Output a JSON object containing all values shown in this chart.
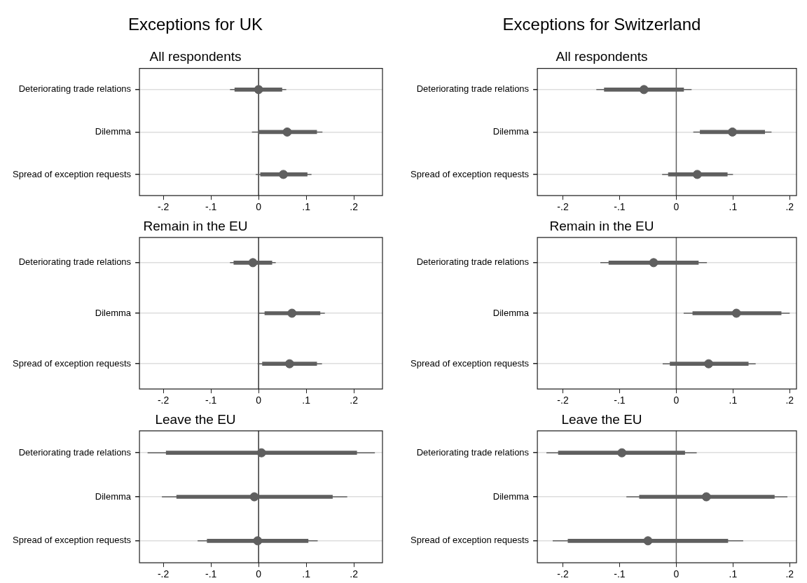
{
  "chart_data": [
    {
      "type": "scatter",
      "orientation": "horizontal",
      "title": "Exceptions for UK",
      "subtitle": "All respondents",
      "categories": [
        "Deteriorating trade relations",
        "Dilemma",
        "Spread of exception requests"
      ],
      "grid": "y",
      "xlim": [
        -0.25,
        0.26
      ],
      "xticks": [
        {
          "value": -0.2,
          "label": "-.2"
        },
        {
          "value": -0.1,
          "label": "-.1"
        },
        {
          "value": 0,
          "label": "0"
        },
        {
          "value": 0.1,
          "label": ".1"
        },
        {
          "value": 0.2,
          "label": ".2"
        }
      ],
      "ref_lines": [
        {
          "axis": "x",
          "value": 0,
          "color": "#333333"
        }
      ],
      "series": [
        {
          "type": "bar",
          "color": "#5f5f5f",
          "base": [
            -0.05,
            0.001,
            0.004
          ],
          "values": [
            0.099,
            0.121,
            0.098
          ]
        },
        {
          "type": "scatter",
          "color": "#5f5f5f",
          "marker": "circle",
          "values": [
            0,
            0.06,
            0.052
          ],
          "errors": [
            [
              -0.06,
              0.058
            ],
            [
              -0.014,
              0.134
            ],
            [
              -0.006,
              0.111
            ]
          ]
        }
      ]
    },
    {
      "type": "scatter",
      "orientation": "horizontal",
      "title": "Exceptions for Switzerland",
      "subtitle": "All respondents",
      "categories": [
        "Deteriorating trade relations",
        "Dilemma",
        "Spread of exception requests"
      ],
      "grid": "y",
      "xlim": [
        -0.245,
        0.212
      ],
      "xticks": [
        {
          "value": -0.2,
          "label": "-.2"
        },
        {
          "value": -0.1,
          "label": "-.1"
        },
        {
          "value": 0,
          "label": "0"
        },
        {
          "value": 0.1,
          "label": ".1"
        },
        {
          "value": 0.2,
          "label": ".2"
        }
      ],
      "ref_lines": [
        {
          "axis": "x",
          "value": 0,
          "color": "#5f5f5f"
        }
      ],
      "series": [
        {
          "type": "bar",
          "color": "#5f5f5f",
          "base": [
            -0.127,
            0.042,
            -0.014
          ],
          "values": [
            0.14,
            0.114,
            0.104
          ]
        },
        {
          "type": "scatter",
          "color": "#5f5f5f",
          "marker": "circle",
          "values": [
            -0.057,
            0.099,
            0.037
          ],
          "errors": [
            [
              -0.141,
              0.027
            ],
            [
              0.03,
              0.168
            ],
            [
              -0.025,
              0.1
            ]
          ]
        }
      ]
    },
    {
      "type": "scatter",
      "orientation": "horizontal",
      "title": "Remain in the EU",
      "categories": [
        "Deteriorating trade relations",
        "Dilemma",
        "Spread of exception requests"
      ],
      "grid": "y",
      "xlim": [
        -0.25,
        0.26
      ],
      "xticks": [
        {
          "value": -0.2,
          "label": "-.2"
        },
        {
          "value": -0.1,
          "label": "-.1"
        },
        {
          "value": 0,
          "label": "0"
        },
        {
          "value": 0.1,
          "label": ".1"
        },
        {
          "value": 0.2,
          "label": ".2"
        }
      ],
      "ref_lines": [
        {
          "axis": "x",
          "value": 0,
          "color": "#333333"
        }
      ],
      "series": [
        {
          "type": "bar",
          "color": "#5f5f5f",
          "base": [
            -0.052,
            0.013,
            0.008
          ],
          "values": [
            0.08,
            0.116,
            0.114
          ]
        },
        {
          "type": "scatter",
          "color": "#5f5f5f",
          "marker": "circle",
          "values": [
            -0.012,
            0.07,
            0.065
          ],
          "errors": [
            [
              -0.06,
              0.036
            ],
            [
              0.001,
              0.139
            ],
            [
              -0.002,
              0.133
            ]
          ]
        }
      ]
    },
    {
      "type": "scatter",
      "orientation": "horizontal",
      "title": "Remain in the EU",
      "categories": [
        "Deteriorating trade relations",
        "Dilemma",
        "Spread of exception requests"
      ],
      "grid": "y",
      "xlim": [
        -0.245,
        0.212
      ],
      "xticks": [
        {
          "value": -0.2,
          "label": "-.2"
        },
        {
          "value": -0.1,
          "label": "-.1"
        },
        {
          "value": 0,
          "label": "0"
        },
        {
          "value": 0.1,
          "label": ".1"
        },
        {
          "value": 0.2,
          "label": ".2"
        }
      ],
      "ref_lines": [
        {
          "axis": "x",
          "value": 0,
          "color": "#5f5f5f"
        }
      ],
      "series": [
        {
          "type": "bar",
          "color": "#5f5f5f",
          "base": [
            -0.119,
            0.029,
            -0.011
          ],
          "values": [
            0.158,
            0.156,
            0.138
          ]
        },
        {
          "type": "scatter",
          "color": "#5f5f5f",
          "marker": "circle",
          "values": [
            -0.04,
            0.106,
            0.057
          ],
          "errors": [
            [
              -0.134,
              0.054
            ],
            [
              0.013,
              0.2
            ],
            [
              -0.024,
              0.14
            ]
          ]
        }
      ]
    },
    {
      "type": "scatter",
      "orientation": "horizontal",
      "title": "Leave the EU",
      "categories": [
        "Deteriorating trade relations",
        "Dilemma",
        "Spread of exception requests"
      ],
      "grid": "y",
      "xlim": [
        -0.25,
        0.26
      ],
      "xticks": [
        {
          "value": -0.2,
          "label": "-.2"
        },
        {
          "value": -0.1,
          "label": "-.1"
        },
        {
          "value": 0,
          "label": "0"
        },
        {
          "value": 0.1,
          "label": ".1"
        },
        {
          "value": 0.2,
          "label": ".2"
        }
      ],
      "ref_lines": [
        {
          "axis": "x",
          "value": 0,
          "color": "#333333"
        }
      ],
      "series": [
        {
          "type": "bar",
          "color": "#5f5f5f",
          "base": [
            -0.194,
            -0.172,
            -0.108
          ],
          "values": [
            0.4,
            0.327,
            0.212
          ]
        },
        {
          "type": "scatter",
          "color": "#5f5f5f",
          "marker": "circle",
          "values": [
            0.006,
            -0.009,
            -0.002
          ],
          "errors": [
            [
              -0.233,
              0.244
            ],
            [
              -0.203,
              0.186
            ],
            [
              -0.128,
              0.124
            ]
          ]
        }
      ]
    },
    {
      "type": "scatter",
      "orientation": "horizontal",
      "title": "Leave the EU",
      "categories": [
        "Deteriorating trade relations",
        "Dilemma",
        "Spread of exception requests"
      ],
      "grid": "y",
      "xlim": [
        -0.245,
        0.212
      ],
      "xticks": [
        {
          "value": -0.2,
          "label": "-.2"
        },
        {
          "value": -0.1,
          "label": "-.1"
        },
        {
          "value": 0,
          "label": "0"
        },
        {
          "value": 0.1,
          "label": ".1"
        },
        {
          "value": 0.2,
          "label": ".2"
        }
      ],
      "ref_lines": [
        {
          "axis": "x",
          "value": 0,
          "color": "#5f5f5f"
        }
      ],
      "series": [
        {
          "type": "bar",
          "color": "#5f5f5f",
          "base": [
            -0.208,
            -0.065,
            -0.191
          ],
          "values": [
            0.223,
            0.238,
            0.282
          ]
        },
        {
          "type": "scatter",
          "color": "#5f5f5f",
          "marker": "circle",
          "values": [
            -0.096,
            0.053,
            -0.05
          ],
          "errors": [
            [
              -0.229,
              0.036
            ],
            [
              -0.088,
              0.196
            ],
            [
              -0.218,
              0.118
            ]
          ]
        }
      ]
    }
  ]
}
